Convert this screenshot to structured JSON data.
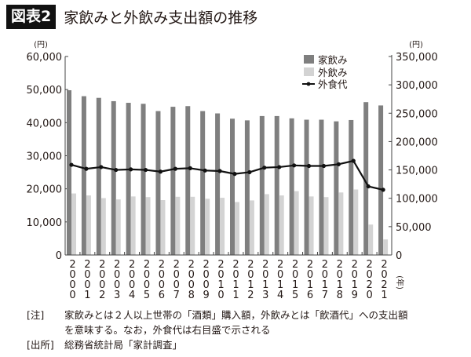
{
  "header": {
    "figure_label": "図表2",
    "title": "家飲みと外飲み支出額の推移"
  },
  "chart_data": {
    "type": "bar",
    "title": "家飲みと外飲み支出額の推移",
    "categories": [
      "2000",
      "2001",
      "2002",
      "2003",
      "2004",
      "2005",
      "2006",
      "2007",
      "2008",
      "2009",
      "2010",
      "2011",
      "2012",
      "2013",
      "2014",
      "2015",
      "2016",
      "2017",
      "2018",
      "2019",
      "2020",
      "2021"
    ],
    "xlabel": "年",
    "ylabel": "円",
    "ylabel_right": "円",
    "ylim": [
      0,
      60000
    ],
    "ylim_right": [
      0,
      350000
    ],
    "yticks": [
      "0",
      "10,000",
      "20,000",
      "30,000",
      "40,000",
      "50,000",
      "60,000"
    ],
    "yticks_right": [
      "0",
      "50,000",
      "100,000",
      "150,000",
      "200,000",
      "250,000",
      "300,000",
      "350,000"
    ],
    "legend_position": "top-right inside plot",
    "grid": false,
    "series": [
      {
        "name": "家飲み",
        "type": "bar",
        "axis": "left",
        "color": "#7f7f7f",
        "values": [
          49800,
          48000,
          47500,
          46500,
          46000,
          45700,
          43500,
          44800,
          45000,
          43500,
          42800,
          41200,
          40700,
          42000,
          42000,
          41300,
          40900,
          40900,
          40400,
          40800,
          46200,
          45200
        ]
      },
      {
        "name": "外飲み",
        "type": "bar",
        "axis": "left",
        "color": "#d3d3d3",
        "values": [
          18600,
          18000,
          17200,
          16800,
          17700,
          17500,
          16600,
          17600,
          17600,
          17000,
          17300,
          16000,
          16500,
          18400,
          18000,
          19300,
          17700,
          17500,
          18900,
          19800,
          9200,
          4700
        ]
      },
      {
        "name": "外食代",
        "type": "line",
        "axis": "right",
        "color": "#111111",
        "values": [
          159000,
          152000,
          155000,
          150000,
          151000,
          150000,
          147000,
          152000,
          153000,
          149000,
          148000,
          143000,
          146000,
          154000,
          155000,
          158000,
          157000,
          157000,
          160000,
          166000,
          121000,
          115000
        ]
      }
    ]
  },
  "axis": {
    "left_unit": "(円)",
    "right_unit": "(円)",
    "x_unit": "(年)"
  },
  "notes": {
    "note_key": "[注]",
    "note_line1": "家飲みとは２人以上世帯の「酒類」購入額，外飲みとは「飲酒代」への支出額",
    "note_line2": "を意味する。なお，外食代は右目盛で示される",
    "source_key": "[出所]",
    "source_text": "総務省統計局「家計調査」"
  }
}
